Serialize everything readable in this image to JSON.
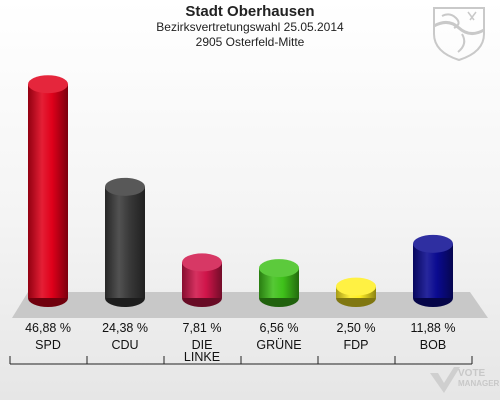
{
  "header": {
    "title": "Stadt Oberhausen",
    "subtitle1": "Bezirksvertretungswahl 25.05.2014",
    "subtitle2": "2905 Osterfeld-Mitte"
  },
  "watermark": {
    "line1": "VOTE",
    "line2": "MANAGER"
  },
  "chart_data": {
    "type": "bar",
    "categories": [
      "SPD",
      "CDU",
      "DIE LINKE",
      "GRÜNE",
      "FDP",
      "BOB"
    ],
    "tick_labels": [
      [
        "SPD"
      ],
      [
        "CDU"
      ],
      [
        "DIE",
        "LINKE"
      ],
      [
        "GRÜNE"
      ],
      [
        "FDP"
      ],
      [
        "BOB"
      ]
    ],
    "values": [
      46.88,
      24.38,
      7.81,
      6.56,
      2.5,
      11.88
    ],
    "value_labels": [
      "46,88 %",
      "24,38 %",
      "7,81 %",
      "6,56 %",
      "2,50 %",
      "11,88 %"
    ],
    "colors": [
      "#e0001a",
      "#3a3a3a",
      "#d0154a",
      "#3fc11a",
      "#ffee22",
      "#0a0a90"
    ],
    "ylim": [
      0,
      50
    ],
    "grid": false,
    "legend": "none"
  }
}
